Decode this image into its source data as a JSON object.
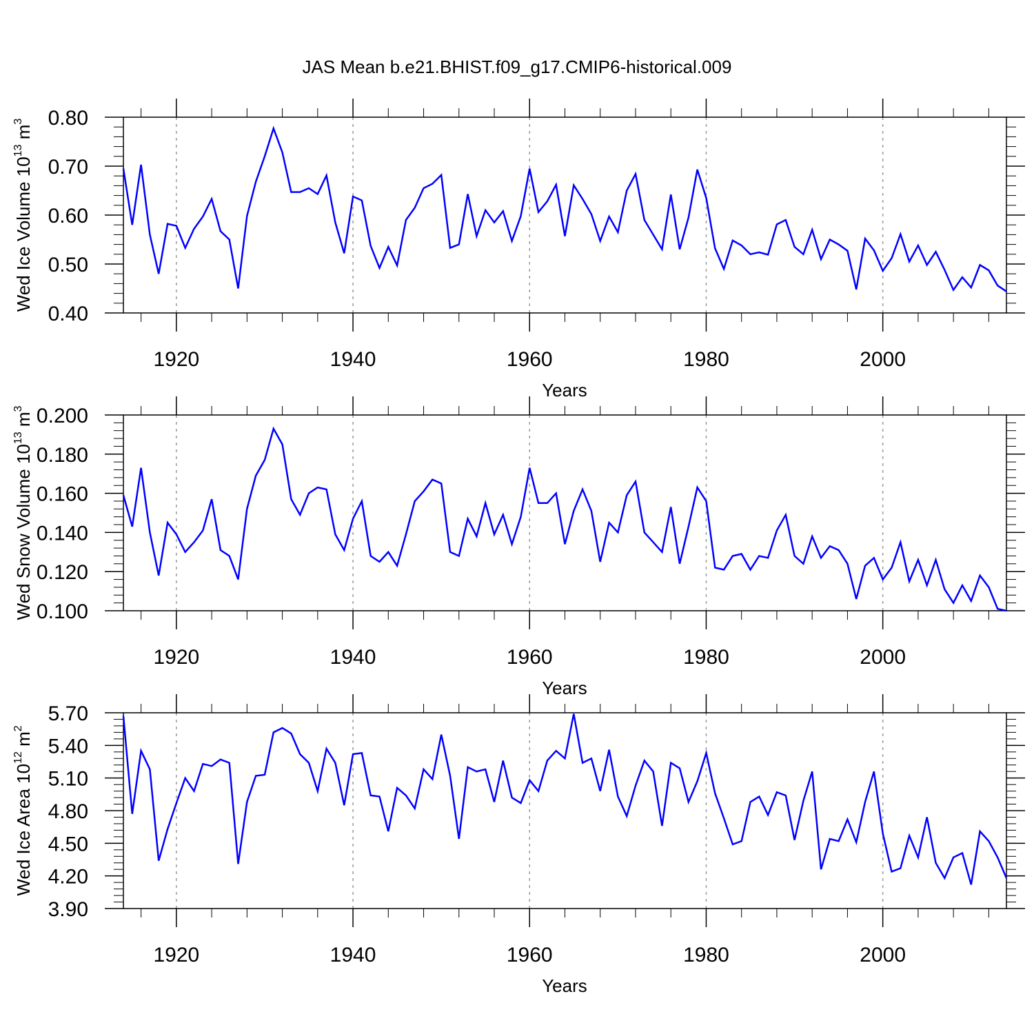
{
  "title": "JAS Mean b.e21.BHIST.f09_g17.CMIP6-historical.009",
  "colors": {
    "line": "#0000ff",
    "axis": "#000000",
    "grid": "#999999"
  },
  "chart_data": [
    {
      "type": "line",
      "ylabel_parts": [
        "Wed Ice Volume 10",
        "13",
        " m",
        "3"
      ],
      "xlabel": "Years",
      "xlim": [
        1914,
        2014
      ],
      "ylim": [
        0.4,
        0.8
      ],
      "yticks": [
        0.4,
        0.5,
        0.6,
        0.7,
        0.8
      ],
      "yticklabels": [
        "0.40",
        "0.50",
        "0.60",
        "0.70",
        "0.80"
      ],
      "xticks": [
        1920,
        1940,
        1960,
        1980,
        2000
      ],
      "xticklabels": [
        "1920",
        "1940",
        "1960",
        "1980",
        "2000"
      ],
      "x_start": 1914,
      "values": [
        0.695,
        0.58,
        0.703,
        0.56,
        0.48,
        0.582,
        0.578,
        0.533,
        0.572,
        0.597,
        0.633,
        0.567,
        0.55,
        0.45,
        0.598,
        0.668,
        0.72,
        0.777,
        0.728,
        0.647,
        0.647,
        0.655,
        0.643,
        0.681,
        0.585,
        0.522,
        0.638,
        0.63,
        0.537,
        0.492,
        0.535,
        0.497,
        0.59,
        0.615,
        0.655,
        0.664,
        0.682,
        0.533,
        0.54,
        0.643,
        0.557,
        0.61,
        0.585,
        0.608,
        0.547,
        0.598,
        0.695,
        0.606,
        0.628,
        0.662,
        0.557,
        0.661,
        0.633,
        0.602,
        0.547,
        0.597,
        0.565,
        0.65,
        0.684,
        0.59,
        0.56,
        0.53,
        0.642,
        0.53,
        0.595,
        0.693,
        0.635,
        0.532,
        0.49,
        0.548,
        0.538,
        0.52,
        0.524,
        0.519,
        0.581,
        0.59,
        0.535,
        0.52,
        0.57,
        0.51,
        0.55,
        0.54,
        0.527,
        0.448,
        0.552,
        0.528,
        0.486,
        0.512,
        0.561,
        0.505,
        0.538,
        0.498,
        0.525,
        0.488,
        0.447,
        0.473,
        0.452,
        0.498,
        0.487,
        0.456,
        0.444
      ]
    },
    {
      "type": "line",
      "ylabel_parts": [
        "Wed Snow Volume 10",
        "13",
        " m",
        "3"
      ],
      "xlabel": "Years",
      "xlim": [
        1914,
        2014
      ],
      "ylim": [
        0.1,
        0.2
      ],
      "yticks": [
        0.1,
        0.12,
        0.14,
        0.16,
        0.18,
        0.2
      ],
      "yticklabels": [
        "0.100",
        "0.120",
        "0.140",
        "0.160",
        "0.180",
        "0.200"
      ],
      "xticks": [
        1920,
        1940,
        1960,
        1980,
        2000
      ],
      "xticklabels": [
        "1920",
        "1940",
        "1960",
        "1980",
        "2000"
      ],
      "x_start": 1914,
      "values": [
        0.159,
        0.143,
        0.173,
        0.14,
        0.118,
        0.145,
        0.139,
        0.13,
        0.135,
        0.141,
        0.157,
        0.131,
        0.128,
        0.116,
        0.152,
        0.169,
        0.177,
        0.193,
        0.185,
        0.157,
        0.149,
        0.16,
        0.163,
        0.162,
        0.139,
        0.131,
        0.147,
        0.156,
        0.128,
        0.125,
        0.13,
        0.123,
        0.139,
        0.156,
        0.161,
        0.167,
        0.165,
        0.13,
        0.128,
        0.147,
        0.138,
        0.155,
        0.139,
        0.149,
        0.134,
        0.148,
        0.173,
        0.155,
        0.155,
        0.16,
        0.134,
        0.151,
        0.162,
        0.151,
        0.125,
        0.145,
        0.14,
        0.159,
        0.166,
        0.14,
        0.135,
        0.13,
        0.153,
        0.124,
        0.143,
        0.163,
        0.156,
        0.122,
        0.121,
        0.128,
        0.129,
        0.121,
        0.128,
        0.127,
        0.141,
        0.149,
        0.128,
        0.124,
        0.138,
        0.127,
        0.133,
        0.131,
        0.124,
        0.106,
        0.123,
        0.127,
        0.116,
        0.122,
        0.135,
        0.115,
        0.126,
        0.113,
        0.126,
        0.111,
        0.104,
        0.113,
        0.105,
        0.118,
        0.112,
        0.101,
        0.1
      ]
    },
    {
      "type": "line",
      "ylabel_parts": [
        "Wed Ice Area 10",
        "12",
        " m",
        "2"
      ],
      "xlabel": "Years",
      "xlim": [
        1914,
        2014
      ],
      "ylim": [
        3.9,
        5.7
      ],
      "yticks": [
        3.9,
        4.2,
        4.5,
        4.8,
        5.1,
        5.4,
        5.7
      ],
      "yticklabels": [
        "3.90",
        "4.20",
        "4.50",
        "4.80",
        "5.10",
        "5.40",
        "5.70"
      ],
      "xticks": [
        1920,
        1940,
        1960,
        1980,
        2000
      ],
      "xticklabels": [
        "1920",
        "1940",
        "1960",
        "1980",
        "2000"
      ],
      "x_start": 1914,
      "values": [
        5.67,
        4.77,
        5.35,
        5.18,
        4.34,
        4.63,
        4.87,
        5.1,
        4.98,
        5.23,
        5.21,
        5.27,
        5.24,
        4.31,
        4.88,
        5.12,
        5.13,
        5.52,
        5.56,
        5.51,
        5.32,
        5.24,
        4.98,
        5.37,
        5.24,
        4.85,
        5.32,
        5.33,
        4.94,
        4.93,
        4.61,
        5.01,
        4.94,
        4.82,
        5.18,
        5.09,
        5.5,
        5.12,
        4.54,
        5.2,
        5.16,
        5.18,
        4.88,
        5.26,
        4.92,
        4.87,
        5.08,
        4.98,
        5.26,
        5.35,
        5.28,
        5.69,
        5.24,
        5.28,
        4.98,
        5.36,
        4.93,
        4.75,
        5.03,
        5.26,
        5.16,
        4.66,
        5.24,
        5.19,
        4.88,
        5.07,
        5.33,
        4.96,
        4.73,
        4.49,
        4.52,
        4.88,
        4.93,
        4.76,
        4.97,
        4.94,
        4.53,
        4.89,
        5.16,
        4.26,
        4.54,
        4.52,
        4.72,
        4.51,
        4.88,
        5.16,
        4.59,
        4.24,
        4.27,
        4.57,
        4.37,
        4.74,
        4.32,
        4.18,
        4.37,
        4.41,
        4.12,
        4.61,
        4.52,
        4.37,
        4.18
      ]
    }
  ]
}
